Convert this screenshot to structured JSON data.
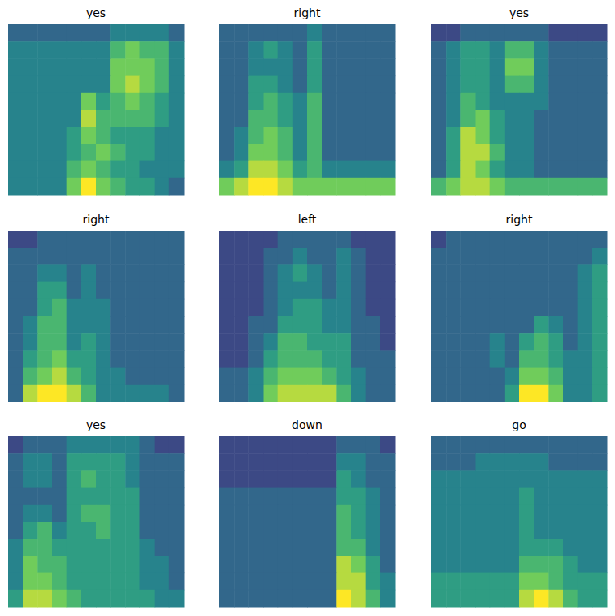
{
  "chart_data": [
    {
      "type": "heatmap",
      "title": "yes",
      "tick_labels": false,
      "zlim": [
        0,
        9
      ],
      "cells": [
        [
          3,
          3,
          3,
          3,
          3,
          3,
          3,
          4,
          4,
          4,
          4,
          3
        ],
        [
          4,
          4,
          4,
          4,
          4,
          4,
          4,
          6,
          7,
          6,
          6,
          4
        ],
        [
          4,
          4,
          4,
          4,
          4,
          4,
          4,
          7,
          7,
          7,
          6,
          4
        ],
        [
          4,
          4,
          4,
          4,
          4,
          4,
          4,
          7,
          8,
          7,
          6,
          4
        ],
        [
          4,
          4,
          4,
          4,
          4,
          7,
          5,
          6,
          7,
          6,
          5,
          4
        ],
        [
          4,
          4,
          4,
          4,
          4,
          8,
          6,
          6,
          6,
          6,
          5,
          4
        ],
        [
          4,
          4,
          4,
          4,
          5,
          7,
          6,
          5,
          5,
          5,
          4,
          4
        ],
        [
          4,
          4,
          4,
          4,
          5,
          6,
          7,
          6,
          5,
          5,
          4,
          4
        ],
        [
          4,
          4,
          4,
          4,
          6,
          7,
          6,
          5,
          5,
          4,
          4,
          4
        ],
        [
          4,
          4,
          4,
          4,
          7,
          9,
          7,
          6,
          5,
          5,
          4,
          3
        ]
      ]
    },
    {
      "type": "heatmap",
      "title": "right",
      "tick_labels": false,
      "zlim": [
        0,
        9
      ],
      "cells": [
        [
          3,
          3,
          3,
          3,
          3,
          3,
          4,
          3,
          3,
          3,
          3,
          3
        ],
        [
          3,
          3,
          4,
          5,
          4,
          3,
          5,
          3,
          3,
          3,
          3,
          3
        ],
        [
          3,
          3,
          4,
          4,
          4,
          3,
          5,
          3,
          3,
          3,
          3,
          3
        ],
        [
          3,
          3,
          5,
          5,
          4,
          3,
          5,
          3,
          3,
          3,
          3,
          3
        ],
        [
          3,
          3,
          5,
          6,
          5,
          4,
          6,
          3,
          3,
          3,
          3,
          3
        ],
        [
          3,
          3,
          6,
          6,
          5,
          4,
          6,
          3,
          3,
          3,
          3,
          3
        ],
        [
          3,
          4,
          6,
          7,
          6,
          4,
          6,
          3,
          3,
          3,
          3,
          3
        ],
        [
          3,
          4,
          7,
          7,
          6,
          4,
          6,
          3,
          3,
          3,
          3,
          3
        ],
        [
          4,
          5,
          8,
          8,
          7,
          5,
          6,
          4,
          4,
          4,
          4,
          4
        ],
        [
          7,
          8,
          9,
          9,
          8,
          7,
          7,
          7,
          7,
          7,
          7,
          7
        ]
      ]
    },
    {
      "type": "heatmap",
      "title": "yes",
      "tick_labels": false,
      "zlim": [
        0,
        9
      ],
      "cells": [
        [
          2,
          2,
          3,
          3,
          3,
          3,
          3,
          3,
          2,
          2,
          2,
          2
        ],
        [
          3,
          4,
          5,
          5,
          4,
          6,
          6,
          4,
          3,
          3,
          3,
          3
        ],
        [
          3,
          4,
          5,
          5,
          4,
          7,
          7,
          4,
          3,
          3,
          3,
          3
        ],
        [
          3,
          4,
          5,
          5,
          4,
          6,
          6,
          4,
          3,
          3,
          3,
          3
        ],
        [
          3,
          4,
          6,
          5,
          4,
          4,
          4,
          4,
          3,
          3,
          3,
          3
        ],
        [
          3,
          4,
          6,
          7,
          5,
          4,
          4,
          3,
          3,
          3,
          3,
          3
        ],
        [
          3,
          5,
          8,
          7,
          5,
          4,
          4,
          3,
          3,
          3,
          3,
          3
        ],
        [
          3,
          5,
          8,
          8,
          6,
          4,
          4,
          3,
          3,
          3,
          3,
          3
        ],
        [
          3,
          5,
          8,
          7,
          5,
          4,
          4,
          3,
          3,
          3,
          3,
          3
        ],
        [
          6,
          7,
          8,
          8,
          7,
          6,
          6,
          6,
          6,
          6,
          6,
          6
        ]
      ]
    },
    {
      "type": "heatmap",
      "title": "right",
      "tick_labels": false,
      "zlim": [
        0,
        9
      ],
      "cells": [
        [
          2,
          2,
          3,
          3,
          3,
          3,
          3,
          3,
          3,
          3,
          3,
          3
        ],
        [
          3,
          3,
          3,
          3,
          3,
          3,
          3,
          3,
          3,
          3,
          3,
          3
        ],
        [
          3,
          3,
          4,
          4,
          3,
          4,
          3,
          3,
          3,
          3,
          3,
          3
        ],
        [
          3,
          3,
          5,
          5,
          3,
          4,
          3,
          3,
          3,
          3,
          3,
          3
        ],
        [
          3,
          3,
          5,
          6,
          4,
          4,
          4,
          3,
          3,
          3,
          3,
          3
        ],
        [
          3,
          4,
          6,
          6,
          4,
          4,
          4,
          3,
          3,
          3,
          3,
          3
        ],
        [
          3,
          4,
          6,
          6,
          4,
          5,
          4,
          3,
          3,
          3,
          3,
          3
        ],
        [
          3,
          5,
          6,
          7,
          5,
          5,
          4,
          3,
          3,
          3,
          3,
          3
        ],
        [
          3,
          6,
          7,
          8,
          6,
          5,
          4,
          4,
          3,
          3,
          3,
          3
        ],
        [
          3,
          8,
          9,
          9,
          8,
          6,
          4,
          4,
          4,
          4,
          4,
          3
        ]
      ]
    },
    {
      "type": "heatmap",
      "title": "left",
      "tick_labels": false,
      "zlim": [
        0,
        9
      ],
      "cells": [
        [
          2,
          2,
          2,
          2,
          3,
          3,
          3,
          3,
          3,
          2,
          2,
          2
        ],
        [
          2,
          2,
          2,
          3,
          3,
          4,
          3,
          3,
          4,
          3,
          2,
          2
        ],
        [
          2,
          2,
          2,
          3,
          4,
          5,
          4,
          3,
          4,
          3,
          2,
          2
        ],
        [
          2,
          2,
          2,
          3,
          4,
          4,
          4,
          3,
          4,
          3,
          2,
          2
        ],
        [
          2,
          2,
          2,
          3,
          4,
          5,
          5,
          4,
          4,
          3,
          2,
          2
        ],
        [
          2,
          2,
          3,
          3,
          5,
          5,
          5,
          4,
          4,
          3,
          3,
          2
        ],
        [
          2,
          2,
          3,
          4,
          6,
          6,
          5,
          5,
          5,
          3,
          3,
          2
        ],
        [
          2,
          2,
          3,
          5,
          6,
          6,
          6,
          5,
          5,
          3,
          3,
          3
        ],
        [
          3,
          3,
          4,
          6,
          7,
          7,
          7,
          6,
          5,
          4,
          3,
          3
        ],
        [
          3,
          3,
          4,
          7,
          8,
          8,
          8,
          8,
          6,
          4,
          3,
          3
        ]
      ]
    },
    {
      "type": "heatmap",
      "title": "right",
      "tick_labels": false,
      "zlim": [
        0,
        9
      ],
      "cells": [
        [
          2,
          3,
          3,
          3,
          3,
          3,
          3,
          3,
          3,
          3,
          3,
          3
        ],
        [
          3,
          3,
          3,
          3,
          3,
          3,
          3,
          3,
          3,
          3,
          3,
          4
        ],
        [
          3,
          3,
          3,
          3,
          3,
          3,
          3,
          3,
          3,
          3,
          4,
          5
        ],
        [
          3,
          3,
          3,
          3,
          3,
          3,
          3,
          3,
          3,
          3,
          4,
          5
        ],
        [
          3,
          3,
          3,
          3,
          3,
          3,
          3,
          3,
          3,
          3,
          4,
          5
        ],
        [
          3,
          3,
          3,
          3,
          3,
          3,
          3,
          5,
          4,
          3,
          4,
          5
        ],
        [
          3,
          3,
          3,
          3,
          4,
          3,
          5,
          6,
          5,
          3,
          4,
          5
        ],
        [
          3,
          3,
          3,
          3,
          4,
          3,
          6,
          6,
          5,
          4,
          4,
          5
        ],
        [
          3,
          3,
          3,
          3,
          3,
          4,
          7,
          7,
          6,
          4,
          4,
          5
        ],
        [
          3,
          3,
          3,
          3,
          3,
          5,
          9,
          9,
          7,
          4,
          4,
          5
        ]
      ]
    },
    {
      "type": "heatmap",
      "title": "yes",
      "tick_labels": false,
      "zlim": [
        0,
        9
      ],
      "cells": [
        [
          2,
          3,
          3,
          3,
          4,
          4,
          4,
          4,
          4,
          3,
          2,
          2
        ],
        [
          3,
          4,
          4,
          3,
          5,
          5,
          5,
          5,
          4,
          3,
          3,
          3
        ],
        [
          3,
          4,
          4,
          3,
          5,
          6,
          5,
          5,
          4,
          3,
          3,
          3
        ],
        [
          3,
          3,
          3,
          3,
          5,
          5,
          5,
          5,
          5,
          3,
          3,
          3
        ],
        [
          3,
          4,
          4,
          3,
          5,
          6,
          6,
          5,
          5,
          3,
          3,
          3
        ],
        [
          3,
          5,
          6,
          4,
          5,
          5,
          6,
          5,
          5,
          3,
          3,
          3
        ],
        [
          4,
          6,
          6,
          5,
          5,
          5,
          5,
          5,
          5,
          4,
          3,
          3
        ],
        [
          4,
          7,
          6,
          6,
          5,
          5,
          5,
          5,
          5,
          4,
          4,
          3
        ],
        [
          4,
          7,
          7,
          6,
          5,
          5,
          5,
          5,
          5,
          4,
          4,
          3
        ],
        [
          5,
          8,
          8,
          7,
          6,
          5,
          5,
          5,
          5,
          5,
          4,
          4
        ]
      ]
    },
    {
      "type": "heatmap",
      "title": "down",
      "tick_labels": false,
      "zlim": [
        0,
        9
      ],
      "cells": [
        [
          2,
          2,
          2,
          2,
          2,
          2,
          2,
          2,
          3,
          3,
          3,
          2
        ],
        [
          2,
          2,
          2,
          2,
          2,
          2,
          2,
          2,
          4,
          4,
          3,
          3
        ],
        [
          2,
          2,
          2,
          2,
          2,
          2,
          2,
          2,
          5,
          4,
          3,
          3
        ],
        [
          3,
          3,
          3,
          3,
          3,
          3,
          3,
          3,
          5,
          5,
          4,
          3
        ],
        [
          3,
          3,
          3,
          3,
          3,
          3,
          3,
          3,
          6,
          5,
          4,
          3
        ],
        [
          3,
          3,
          3,
          3,
          3,
          3,
          3,
          3,
          6,
          5,
          4,
          3
        ],
        [
          3,
          3,
          3,
          3,
          3,
          3,
          3,
          3,
          6,
          6,
          4,
          3
        ],
        [
          3,
          3,
          3,
          3,
          3,
          3,
          3,
          3,
          8,
          7,
          5,
          3
        ],
        [
          3,
          3,
          3,
          3,
          3,
          3,
          3,
          3,
          8,
          8,
          5,
          4
        ],
        [
          3,
          3,
          3,
          3,
          3,
          3,
          3,
          3,
          9,
          8,
          6,
          4
        ]
      ]
    },
    {
      "type": "heatmap",
      "title": "go",
      "tick_labels": false,
      "zlim": [
        0,
        9
      ],
      "cells": [
        [
          3,
          3,
          3,
          3,
          3,
          3,
          3,
          3,
          3,
          3,
          3,
          3
        ],
        [
          3,
          3,
          3,
          4,
          4,
          4,
          4,
          4,
          3,
          3,
          3,
          3
        ],
        [
          4,
          4,
          4,
          4,
          4,
          4,
          4,
          4,
          4,
          4,
          4,
          4
        ],
        [
          4,
          4,
          4,
          4,
          4,
          4,
          5,
          4,
          4,
          4,
          4,
          4
        ],
        [
          4,
          4,
          4,
          4,
          4,
          4,
          5,
          4,
          4,
          4,
          4,
          4
        ],
        [
          4,
          4,
          4,
          4,
          4,
          4,
          5,
          4,
          4,
          4,
          4,
          4
        ],
        [
          4,
          4,
          4,
          4,
          4,
          4,
          5,
          5,
          5,
          4,
          4,
          4
        ],
        [
          4,
          4,
          4,
          4,
          4,
          4,
          6,
          6,
          6,
          5,
          4,
          4
        ],
        [
          5,
          5,
          5,
          5,
          5,
          5,
          7,
          7,
          6,
          5,
          5,
          5
        ],
        [
          5,
          5,
          5,
          5,
          5,
          5,
          8,
          9,
          8,
          6,
          5,
          5
        ]
      ]
    }
  ]
}
